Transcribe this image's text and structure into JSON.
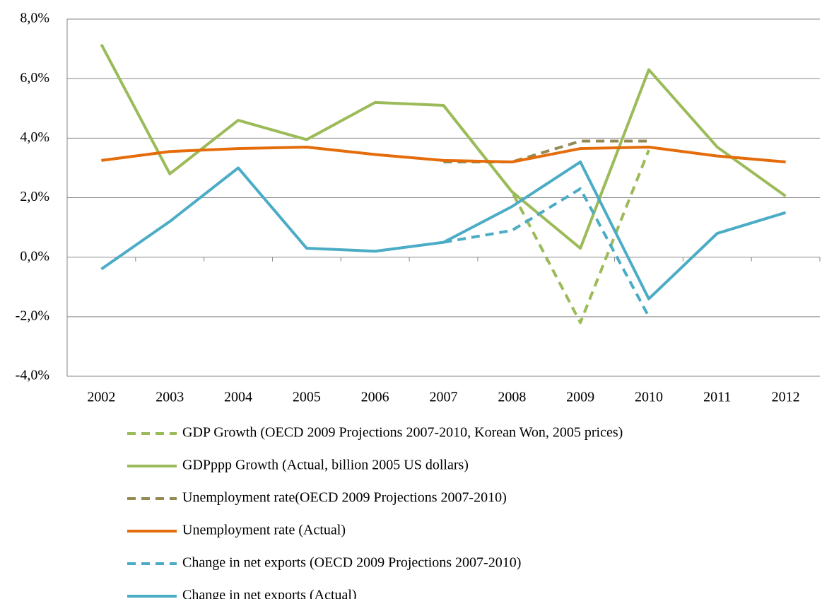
{
  "chart_data": {
    "type": "line",
    "categories": [
      "2002",
      "2003",
      "2004",
      "2005",
      "2006",
      "2007",
      "2008",
      "2009",
      "2010",
      "2011",
      "2012"
    ],
    "ylim": [
      -4,
      8
    ],
    "yticks": [
      {
        "value": -4,
        "label": "-4,0%"
      },
      {
        "value": -2,
        "label": "-2,0%"
      },
      {
        "value": 0,
        "label": "0,0%"
      },
      {
        "value": 2,
        "label": "2,0%"
      },
      {
        "value": 4,
        "label": "4,0%"
      },
      {
        "value": 6,
        "label": "6,0%"
      },
      {
        "value": 8,
        "label": "8,0%"
      }
    ],
    "grid": true,
    "legend": "bottom",
    "series": [
      {
        "name": "GDP Growth (OECD 2009 Projections 2007-2010, Korean Won, 2005 prices)",
        "color": "#9bbb59",
        "dashed": true,
        "values": [
          null,
          null,
          null,
          null,
          null,
          5.1,
          2.2,
          -2.2,
          3.6,
          null,
          null
        ]
      },
      {
        "name": "GDPppp Growth (Actual, billion 2005 US dollars)",
        "color": "#9bbb59",
        "dashed": false,
        "values": [
          7.15,
          2.8,
          4.6,
          3.95,
          5.2,
          5.1,
          2.2,
          0.3,
          6.3,
          3.7,
          2.05
        ]
      },
      {
        "name": "Unemployment rate(OECD 2009 Projections 2007-2010)",
        "color": "#948a54",
        "dashed": true,
        "values": [
          null,
          null,
          null,
          null,
          null,
          3.2,
          3.2,
          3.9,
          3.9,
          null,
          null
        ]
      },
      {
        "name": "Unemployment rate (Actual)",
        "color": "#e46c0a",
        "dashed": false,
        "values": [
          3.25,
          3.55,
          3.65,
          3.7,
          3.45,
          3.25,
          3.2,
          3.65,
          3.7,
          3.4,
          3.2
        ]
      },
      {
        "name": "Change in net exports (OECD 2009 Projections 2007-2010)",
        "color": "#4bacc6",
        "dashed": true,
        "values": [
          null,
          null,
          null,
          null,
          null,
          0.5,
          0.9,
          2.3,
          -2.0,
          null,
          null
        ]
      },
      {
        "name": "Change in net exports (Actual)",
        "color": "#4bacc6",
        "dashed": false,
        "values": [
          -0.4,
          1.2,
          3.0,
          0.3,
          0.2,
          0.5,
          1.7,
          3.2,
          -1.4,
          0.8,
          1.5
        ]
      }
    ]
  }
}
